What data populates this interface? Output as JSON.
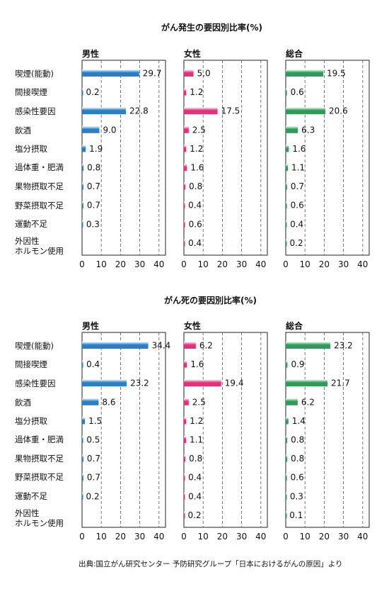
{
  "source_note": "出典:国立がん研究センター 予防研究グループ「日本におけるがんの原因」より",
  "colors": {
    "male": "#2a7fc4",
    "female": "#e0327a",
    "total": "#2f9a59"
  },
  "chart_data": [
    {
      "type": "bar",
      "title": "がん発生の要因別比率(%)",
      "categories": [
        "喫煙(能動)",
        "間接喫煙",
        "感染性要因",
        "飲酒",
        "塩分摂取",
        "過体重・肥満",
        "果物摂取不足",
        "野菜摂取不足",
        "運動不足",
        "外因性\nホルモン使用"
      ],
      "xlim": [
        0,
        45
      ],
      "ticks": [
        0,
        10,
        20,
        30,
        40
      ],
      "grid": true,
      "series": [
        {
          "name": "男性",
          "values": [
            29.7,
            0.2,
            22.8,
            9.0,
            1.9,
            0.8,
            0.7,
            0.7,
            0.3,
            null
          ]
        },
        {
          "name": "女性",
          "values": [
            5.0,
            1.2,
            17.5,
            2.5,
            1.2,
            1.6,
            0.8,
            0.4,
            0.6,
            0.4
          ]
        },
        {
          "name": "総合",
          "values": [
            19.5,
            0.6,
            20.6,
            6.3,
            1.6,
            1.1,
            0.7,
            0.6,
            0.4,
            0.2
          ]
        }
      ],
      "labels": [
        [
          "29.7",
          "0.2",
          "22.8",
          "9.0",
          "1.9",
          "0.8",
          "0.7",
          "0.7",
          "0.3",
          ""
        ],
        [
          "5.0",
          "1.2",
          "17.5",
          "2.5",
          "1.2",
          "1.6",
          "0.8",
          "0.4",
          "0.6",
          "0.4"
        ],
        [
          "19.5",
          "0.6",
          "20.6",
          "6.3",
          "1.6",
          "1.1",
          "0.7",
          "0.6",
          "0.4",
          "0.2"
        ]
      ]
    },
    {
      "type": "bar",
      "title": "がん死の要因別比率(%)",
      "categories": [
        "喫煙(能動)",
        "間接喫煙",
        "感染性要因",
        "飲酒",
        "塩分摂取",
        "過体重・肥満",
        "果物摂取不足",
        "野菜摂取不足",
        "運動不足",
        "外因性\nホルモン使用"
      ],
      "xlim": [
        0,
        45
      ],
      "ticks": [
        0,
        10,
        20,
        30,
        40
      ],
      "grid": true,
      "series": [
        {
          "name": "男性",
          "values": [
            34.4,
            0.4,
            23.2,
            8.6,
            1.5,
            0.5,
            0.7,
            0.7,
            0.2,
            null
          ]
        },
        {
          "name": "女性",
          "values": [
            6.2,
            1.6,
            19.4,
            2.5,
            1.2,
            1.1,
            0.8,
            0.4,
            0.4,
            0.2
          ]
        },
        {
          "name": "総合",
          "values": [
            23.2,
            0.9,
            21.7,
            6.2,
            1.4,
            0.8,
            0.8,
            0.6,
            0.3,
            0.1
          ]
        }
      ],
      "labels": [
        [
          "34.4",
          "0.4",
          "23.2",
          "8.6",
          "1.5",
          "0.5",
          "0.7",
          "0.7",
          "0.2",
          ""
        ],
        [
          "6.2",
          "1.6",
          "19.4",
          "2.5",
          "1.2",
          "1.1",
          "0.8",
          "0.4",
          "0.4",
          "0.2"
        ],
        [
          "23.2",
          "0.9",
          "21.7",
          "6.2",
          "1.4",
          "0.8",
          "0.8",
          "0.6",
          "0.3",
          "0.1"
        ]
      ]
    }
  ]
}
